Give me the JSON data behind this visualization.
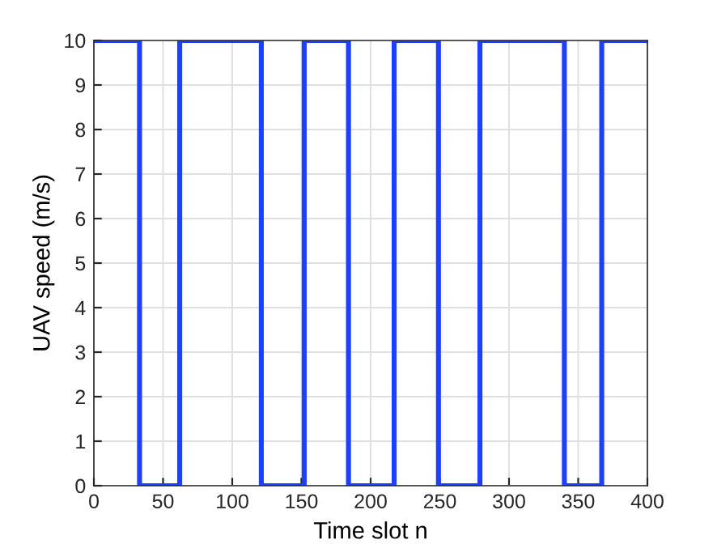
{
  "chart_data": {
    "type": "line",
    "xlabel": "Time slot n",
    "ylabel": "UAV speed (m/s)",
    "series": [
      {
        "color": "#1f3fff",
        "x": [
          0,
          33,
          33,
          62,
          62,
          121,
          121,
          152,
          152,
          184,
          184,
          217,
          217,
          249,
          249,
          279,
          279,
          340,
          340,
          367,
          367,
          400
        ],
        "values": [
          10,
          10,
          0,
          0,
          10,
          10,
          0,
          0,
          10,
          10,
          0,
          0,
          10,
          10,
          0,
          0,
          10,
          10,
          0,
          0,
          10,
          10
        ]
      }
    ],
    "xlim": [
      0,
      400
    ],
    "xticks": [
      0,
      50,
      100,
      150,
      200,
      250,
      300,
      350,
      400
    ],
    "ylim": [
      0,
      10
    ],
    "yticks": [
      0,
      1,
      2,
      3,
      4,
      5,
      6,
      7,
      8,
      9,
      10
    ],
    "grid": true,
    "line_style": "solid",
    "marker": "none"
  }
}
